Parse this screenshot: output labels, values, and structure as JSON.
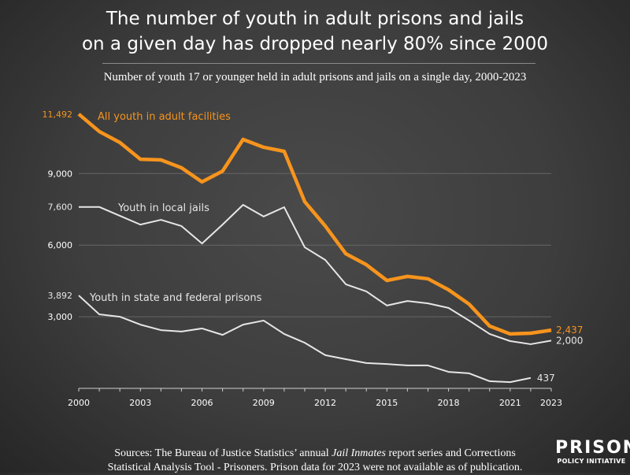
{
  "title_lines": [
    "The number of youth in adult prisons and jails",
    "on a given day has dropped nearly 80% since 2000"
  ],
  "footer": {
    "line1_pre": "Sources: The Bureau of Justice Statistics’ annual ",
    "line1_italic": "Jail Inmates",
    "line1_post": " report series and Corrections",
    "line2": "Statistical Analysis Tool - Prisoners. Prison data for 2023 were not available as of publication."
  },
  "logo": {
    "big": "PRISON",
    "small": "POLICY INITIATIVE"
  },
  "colors": {
    "orange": "#f7941d",
    "white": "#e6e6e6",
    "grid": "#666666"
  },
  "chart_data": {
    "type": "line",
    "title": "The number of youth in adult prisons and jails on a given day has dropped nearly 80% since 2000",
    "subtitle": "Number of youth 17 or younger held in adult prisons and jails on a single day, 2000-2023",
    "xlabel": "",
    "ylabel": "",
    "xlim": [
      2000,
      2023
    ],
    "ylim": [
      0,
      11492
    ],
    "grid": true,
    "y_ticks": [
      3000,
      6000,
      9000
    ],
    "y_tick_labels": [
      "3,000",
      "6,000",
      "9,000"
    ],
    "x_ticks": [
      2000,
      2003,
      2006,
      2009,
      2012,
      2015,
      2018,
      2021,
      2023
    ],
    "x_tick_labels": [
      "2000",
      "2003",
      "2006",
      "2009",
      "2012",
      "2015",
      "2018",
      "2021",
      "2023"
    ],
    "x": [
      2000,
      2001,
      2002,
      2003,
      2004,
      2005,
      2006,
      2007,
      2008,
      2009,
      2010,
      2011,
      2012,
      2013,
      2014,
      2015,
      2016,
      2017,
      2018,
      2019,
      2020,
      2021,
      2022,
      2023
    ],
    "series": [
      {
        "name": "All youth in adult facilities",
        "color": "#f7941d",
        "start_label": "11,492",
        "end_label": "2,437",
        "values": [
          11492,
          10760,
          10300,
          9600,
          9570,
          9240,
          8650,
          9100,
          10430,
          10100,
          9930,
          7820,
          6800,
          5640,
          5180,
          4520,
          4690,
          4590,
          4130,
          3530,
          2610,
          2280,
          2310,
          2437
        ]
      },
      {
        "name": "Youth in local jails",
        "color": "#e6e6e6",
        "start_label": "7,600",
        "end_label": "2,000",
        "values": [
          7600,
          7600,
          7230,
          6860,
          7060,
          6800,
          6070,
          6860,
          7690,
          7200,
          7590,
          5910,
          5380,
          4360,
          4060,
          3470,
          3660,
          3560,
          3370,
          2840,
          2280,
          1980,
          1850,
          2000
        ]
      },
      {
        "name": "Youth in state and federal prisons",
        "color": "#e6e6e6",
        "start_label": "3,892",
        "end_label": "437",
        "values": [
          3892,
          3100,
          3000,
          2670,
          2440,
          2380,
          2510,
          2240,
          2670,
          2840,
          2280,
          1910,
          1390,
          1220,
          1060,
          1020,
          960,
          960,
          690,
          630,
          300,
          260,
          437,
          null
        ]
      }
    ]
  }
}
